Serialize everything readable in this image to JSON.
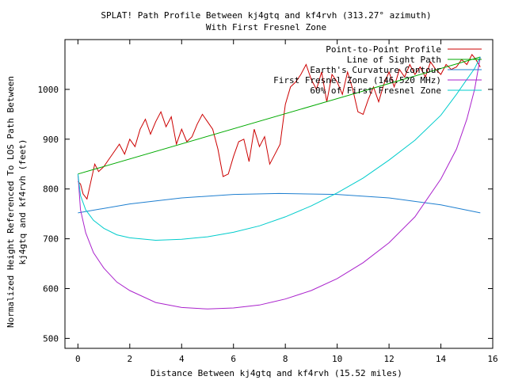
{
  "chart_data": {
    "type": "line",
    "title_line1": "SPLAT! Path Profile Between kj4gtq and kf4rvh (313.27° azimuth)",
    "title_line2": "With First Fresnel Zone",
    "xlabel": "Distance Between kj4gtq and kf4rvh (15.52 miles)",
    "ylabel_line1": "Normalized Height Referenced To LOS Path Between",
    "ylabel_line2": "kj4gtq and kf4rvh (feet)",
    "xlim": [
      -0.5,
      16
    ],
    "ylim": [
      480,
      1100
    ],
    "xticks": [
      0,
      2,
      4,
      6,
      8,
      10,
      12,
      14,
      16
    ],
    "yticks": [
      500,
      600,
      700,
      800,
      900,
      1000
    ],
    "grid": false,
    "legend_position": "top-right",
    "series": [
      {
        "name": "Point-to-Point Profile",
        "color": "#cc0000",
        "x": [
          0,
          0.1,
          0.2,
          0.35,
          0.5,
          0.65,
          0.8,
          1.0,
          1.2,
          1.4,
          1.6,
          1.8,
          2.0,
          2.2,
          2.4,
          2.6,
          2.8,
          3.0,
          3.2,
          3.4,
          3.6,
          3.8,
          4.0,
          4.2,
          4.4,
          4.6,
          4.8,
          5.0,
          5.2,
          5.4,
          5.6,
          5.8,
          6.0,
          6.2,
          6.4,
          6.6,
          6.8,
          7.0,
          7.2,
          7.4,
          7.6,
          7.8,
          8.0,
          8.2,
          8.4,
          8.6,
          8.8,
          9.0,
          9.2,
          9.4,
          9.6,
          9.8,
          10.0,
          10.2,
          10.4,
          10.6,
          10.8,
          11.0,
          11.2,
          11.4,
          11.6,
          11.8,
          12.0,
          12.2,
          12.4,
          12.6,
          12.8,
          13.0,
          13.2,
          13.4,
          13.6,
          13.8,
          14.0,
          14.2,
          14.4,
          14.6,
          14.8,
          15.0,
          15.2,
          15.35,
          15.52
        ],
        "y": [
          815,
          810,
          790,
          780,
          815,
          850,
          835,
          845,
          860,
          875,
          890,
          870,
          900,
          885,
          920,
          940,
          910,
          935,
          955,
          925,
          945,
          890,
          920,
          895,
          905,
          930,
          950,
          935,
          920,
          880,
          825,
          830,
          865,
          895,
          900,
          855,
          920,
          885,
          905,
          850,
          870,
          890,
          970,
          1005,
          1015,
          1030,
          1050,
          1020,
          1000,
          1035,
          975,
          1030,
          1015,
          990,
          1035,
          1000,
          955,
          950,
          980,
          1005,
          975,
          1010,
          1035,
          1005,
          1040,
          1025,
          1050,
          1030,
          1045,
          1025,
          1055,
          1040,
          1030,
          1050,
          1040,
          1045,
          1060,
          1050,
          1070,
          1060,
          1045
        ]
      },
      {
        "name": "Line of Sight Path",
        "color": "#00aa00",
        "x": [
          0,
          15.52
        ],
        "y": [
          830,
          1065
        ]
      },
      {
        "name": "Earth's Curvature Contour",
        "color": "#1e7fd0",
        "x": [
          0,
          2,
          4,
          6,
          7.76,
          10,
          12,
          14,
          15.52
        ],
        "y": [
          752,
          770,
          782,
          789,
          791,
          789,
          782,
          768,
          752
        ]
      },
      {
        "name": "First Fresnel Zone (146.520 MHz)",
        "color": "#aa22cc",
        "x": [
          0,
          0.1,
          0.3,
          0.6,
          1.0,
          1.5,
          2.0,
          3.0,
          4.0,
          5.0,
          6.0,
          7.0,
          8.0,
          9.0,
          10.0,
          11.0,
          12.0,
          13.0,
          14.0,
          14.6,
          15.0,
          15.3,
          15.52
        ],
        "y": [
          830,
          758,
          712,
          672,
          641,
          613,
          596,
          572,
          562,
          559,
          561,
          567,
          579,
          596,
          620,
          652,
          692,
          744,
          820,
          880,
          940,
          1000,
          1065
        ]
      },
      {
        "name": "60% of First Fresnel Zone",
        "color": "#00cccc",
        "x": [
          0,
          0.1,
          0.3,
          0.6,
          1.0,
          1.5,
          2.0,
          3.0,
          4.0,
          5.0,
          6.0,
          7.0,
          8.0,
          9.0,
          10.0,
          11.0,
          12.0,
          13.0,
          14.0,
          14.6,
          15.0,
          15.3,
          15.52
        ],
        "y": [
          830,
          787,
          758,
          737,
          721,
          708,
          702,
          697,
          699,
          704,
          713,
          726,
          744,
          766,
          792,
          822,
          858,
          898,
          948,
          990,
          1020,
          1042,
          1065
        ]
      }
    ]
  }
}
